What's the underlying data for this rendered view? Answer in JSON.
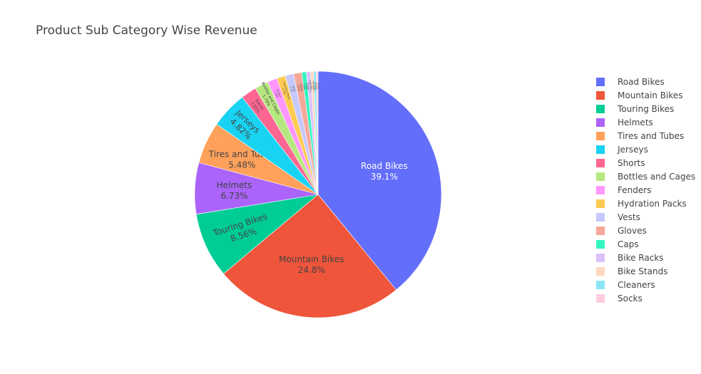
{
  "chart_data": {
    "type": "pie",
    "title": "Product Sub Category Wise Revenue",
    "legend_position": "right",
    "slices": [
      {
        "label": "Road Bikes",
        "value": 39.1,
        "color": "#636efa",
        "text_color": "#ffffff"
      },
      {
        "label": "Mountain Bikes",
        "value": 24.8,
        "color": "#ef553b",
        "text_color": "#444444"
      },
      {
        "label": "Touring Bikes",
        "value": 8.56,
        "color": "#00cc96",
        "text_color": "#444444"
      },
      {
        "label": "Helmets",
        "value": 6.73,
        "color": "#ab63fa",
        "text_color": "#444444"
      },
      {
        "label": "Tires and Tubes",
        "value": 5.48,
        "color": "#ffa15a",
        "text_color": "#444444"
      },
      {
        "label": "Jerseys",
        "value": 4.82,
        "color": "#19d3f3",
        "text_color": "#444444"
      },
      {
        "label": "Shorts",
        "value": 2.05,
        "color": "#ff6692",
        "text_color": "#444444"
      },
      {
        "label": "Bottles and Cages",
        "value": 1.79,
        "color": "#b6e880",
        "text_color": "#444444"
      },
      {
        "label": "Fenders",
        "value": 1.28,
        "color": "#ff97ff",
        "text_color": "#444444"
      },
      {
        "label": "Hydration Packs",
        "value": 1.13,
        "color": "#fecb52",
        "text_color": "#444444"
      },
      {
        "label": "Vests",
        "value": 1.1,
        "color": "#c6c9fd",
        "text_color": "#444444"
      },
      {
        "label": "Gloves",
        "value": 1.07,
        "color": "#f5a89a",
        "text_color": "#444444"
      },
      {
        "label": "Caps",
        "value": 0.6,
        "color": "#33f5c0",
        "text_color": "#444444"
      },
      {
        "label": "Bike Racks",
        "value": 0.55,
        "color": "#dcc0fc",
        "text_color": "#444444"
      },
      {
        "label": "Bike Stands",
        "value": 0.4,
        "color": "#ffd9bd",
        "text_color": "#444444"
      },
      {
        "label": "Cleaners",
        "value": 0.33,
        "color": "#8ce5f7",
        "text_color": "#444444"
      },
      {
        "label": "Socks",
        "value": 0.24,
        "color": "#ffcfdc",
        "text_color": "#444444"
      }
    ]
  }
}
